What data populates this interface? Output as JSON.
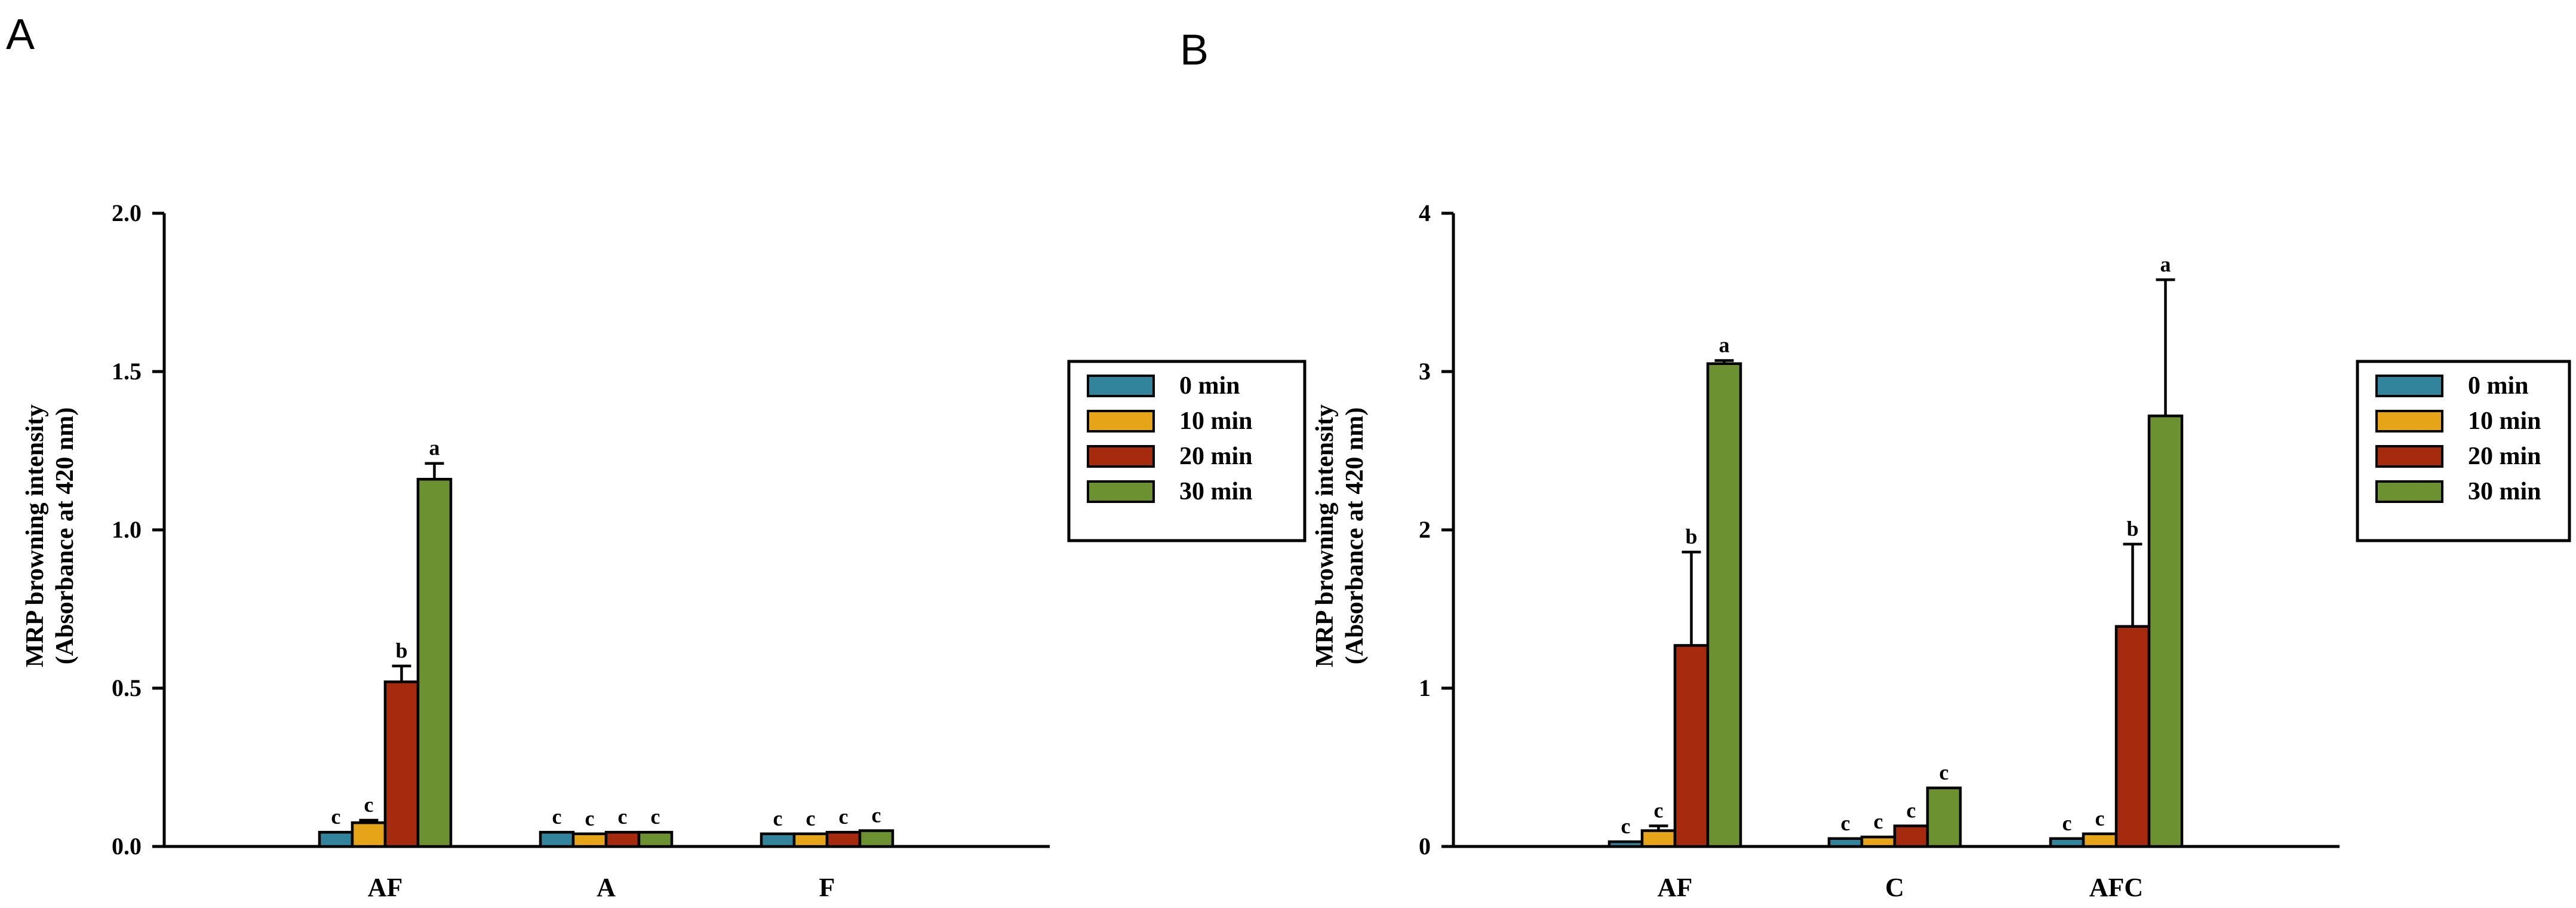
{
  "chart_data": [
    {
      "type": "bar",
      "panel": "A",
      "title": "",
      "xlabel": "",
      "ylabel": [
        "MRP browning intensity",
        "(Absorbance at 420 nm)"
      ],
      "ylim": [
        0,
        2.0
      ],
      "yticks": [
        "0.0",
        "0.5",
        "1.0",
        "1.5",
        "2.0"
      ],
      "ytick_values": [
        0,
        0.5,
        1.0,
        1.5,
        2.0
      ],
      "categories": [
        "AF",
        "A",
        "F"
      ],
      "series": [
        {
          "name": "0 min",
          "color": "#31849b",
          "values": [
            0.045,
            0.045,
            0.04
          ],
          "errors": [
            0,
            0,
            0
          ],
          "letters": [
            "c",
            "c",
            "c"
          ]
        },
        {
          "name": "10 min",
          "color": "#e6a419",
          "values": [
            0.075,
            0.04,
            0.04
          ],
          "errors": [
            0.008,
            0,
            0
          ],
          "letters": [
            "c",
            "c",
            "c"
          ]
        },
        {
          "name": "20 min",
          "color": "#a52a0e",
          "values": [
            0.52,
            0.045,
            0.045
          ],
          "errors": [
            0.05,
            0,
            0
          ],
          "letters": [
            "b",
            "c",
            "c"
          ]
        },
        {
          "name": "30 min",
          "color": "#6b9130",
          "values": [
            1.16,
            0.045,
            0.05
          ],
          "errors": [
            0.05,
            0,
            0
          ],
          "letters": [
            "a",
            "c",
            "c"
          ]
        }
      ],
      "legend": {
        "placement": "right",
        "entries": [
          "0 min",
          "10 min",
          "20 min",
          "30 min"
        ]
      }
    },
    {
      "type": "bar",
      "panel": "B",
      "title": "",
      "xlabel": "",
      "ylabel": [
        "MRP browning intensity",
        "(Absorbance at 420 nm)"
      ],
      "ylim": [
        0,
        4
      ],
      "yticks": [
        "0",
        "1",
        "2",
        "3",
        "4"
      ],
      "ytick_values": [
        0,
        1,
        2,
        3,
        4
      ],
      "categories": [
        "AF",
        "C",
        "AFC"
      ],
      "series": [
        {
          "name": "0 min",
          "color": "#31849b",
          "values": [
            0.03,
            0.05,
            0.05
          ],
          "errors": [
            0,
            0,
            0
          ],
          "letters": [
            "c",
            "c",
            "c"
          ]
        },
        {
          "name": "10 min",
          "color": "#e6a419",
          "values": [
            0.1,
            0.06,
            0.08
          ],
          "errors": [
            0.03,
            0,
            0
          ],
          "letters": [
            "c",
            "c",
            "c"
          ]
        },
        {
          "name": "20 min",
          "color": "#a52a0e",
          "values": [
            1.27,
            0.13,
            1.39
          ],
          "errors": [
            0.59,
            0,
            0.52
          ],
          "letters": [
            "b",
            "c",
            "b"
          ]
        },
        {
          "name": "30 min",
          "color": "#6b9130",
          "values": [
            3.05,
            0.37,
            2.72
          ],
          "errors": [
            0.02,
            0,
            0.86
          ],
          "letters": [
            "a",
            "c",
            "a"
          ]
        }
      ],
      "legend": {
        "placement": "right",
        "entries": [
          "0 min",
          "10 min",
          "20 min",
          "30 min"
        ]
      }
    }
  ]
}
